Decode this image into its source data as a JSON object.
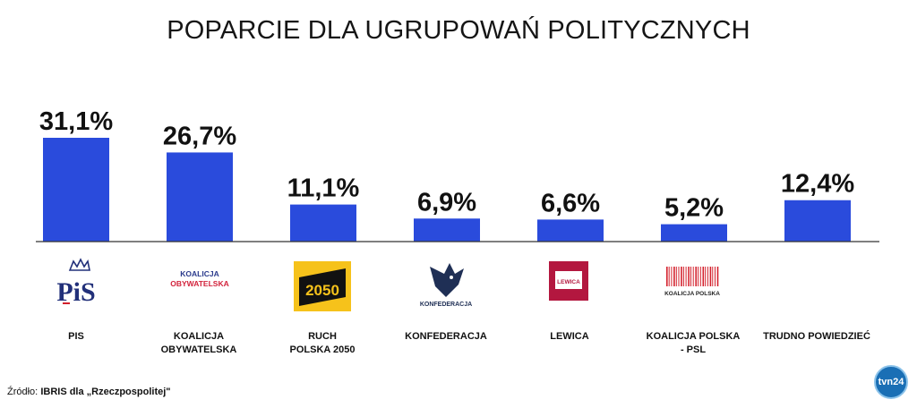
{
  "title": "POPARCIE DLA UGRUPOWAŃ POLITYCZNYCH",
  "chart_data": {
    "type": "bar",
    "categories": [
      "PIS",
      "KOALICJA OBYWATELSKA",
      "RUCH POLSKA 2050",
      "KONFEDERACJA",
      "LEWICA",
      "KOALICJA POLSKA - PSL",
      "TRUDNO POWIEDZIEĆ"
    ],
    "values": [
      31.1,
      26.7,
      11.1,
      6.9,
      6.6,
      5.2,
      12.4
    ],
    "data_labels": [
      "31,1%",
      "26,7%",
      "11,1%",
      "6,9%",
      "6,6%",
      "5,2%",
      "12,4%"
    ],
    "bar_color": "#2a4bdc",
    "ylim": [
      0,
      31.1
    ],
    "grid": false
  },
  "labels": {
    "pis": [
      "PIS"
    ],
    "ko": [
      "KOALICJA",
      "OBYWATELSKA"
    ],
    "p2050": [
      "RUCH",
      "POLSKA 2050"
    ],
    "konf": [
      "KONFEDERACJA"
    ],
    "lewica": [
      "LEWICA"
    ],
    "psl": [
      "KOALICJA POLSKA",
      "- PSL"
    ],
    "trudno": [
      "TRUDNO POWIEDZIEĆ"
    ]
  },
  "logos": {
    "pis": "PiS",
    "ko_line1": "KOALICJA",
    "ko_line2": "OBYWATELSKA",
    "p2050": "2050",
    "konf": "KONFEDERACJA",
    "lewica": "LEWICA",
    "psl": "KOALICJA POLSKA"
  },
  "source": {
    "prefix": "Źródło:",
    "text": "IBRIS dla „Rzeczpospolitej\""
  },
  "brand": "tvn24"
}
